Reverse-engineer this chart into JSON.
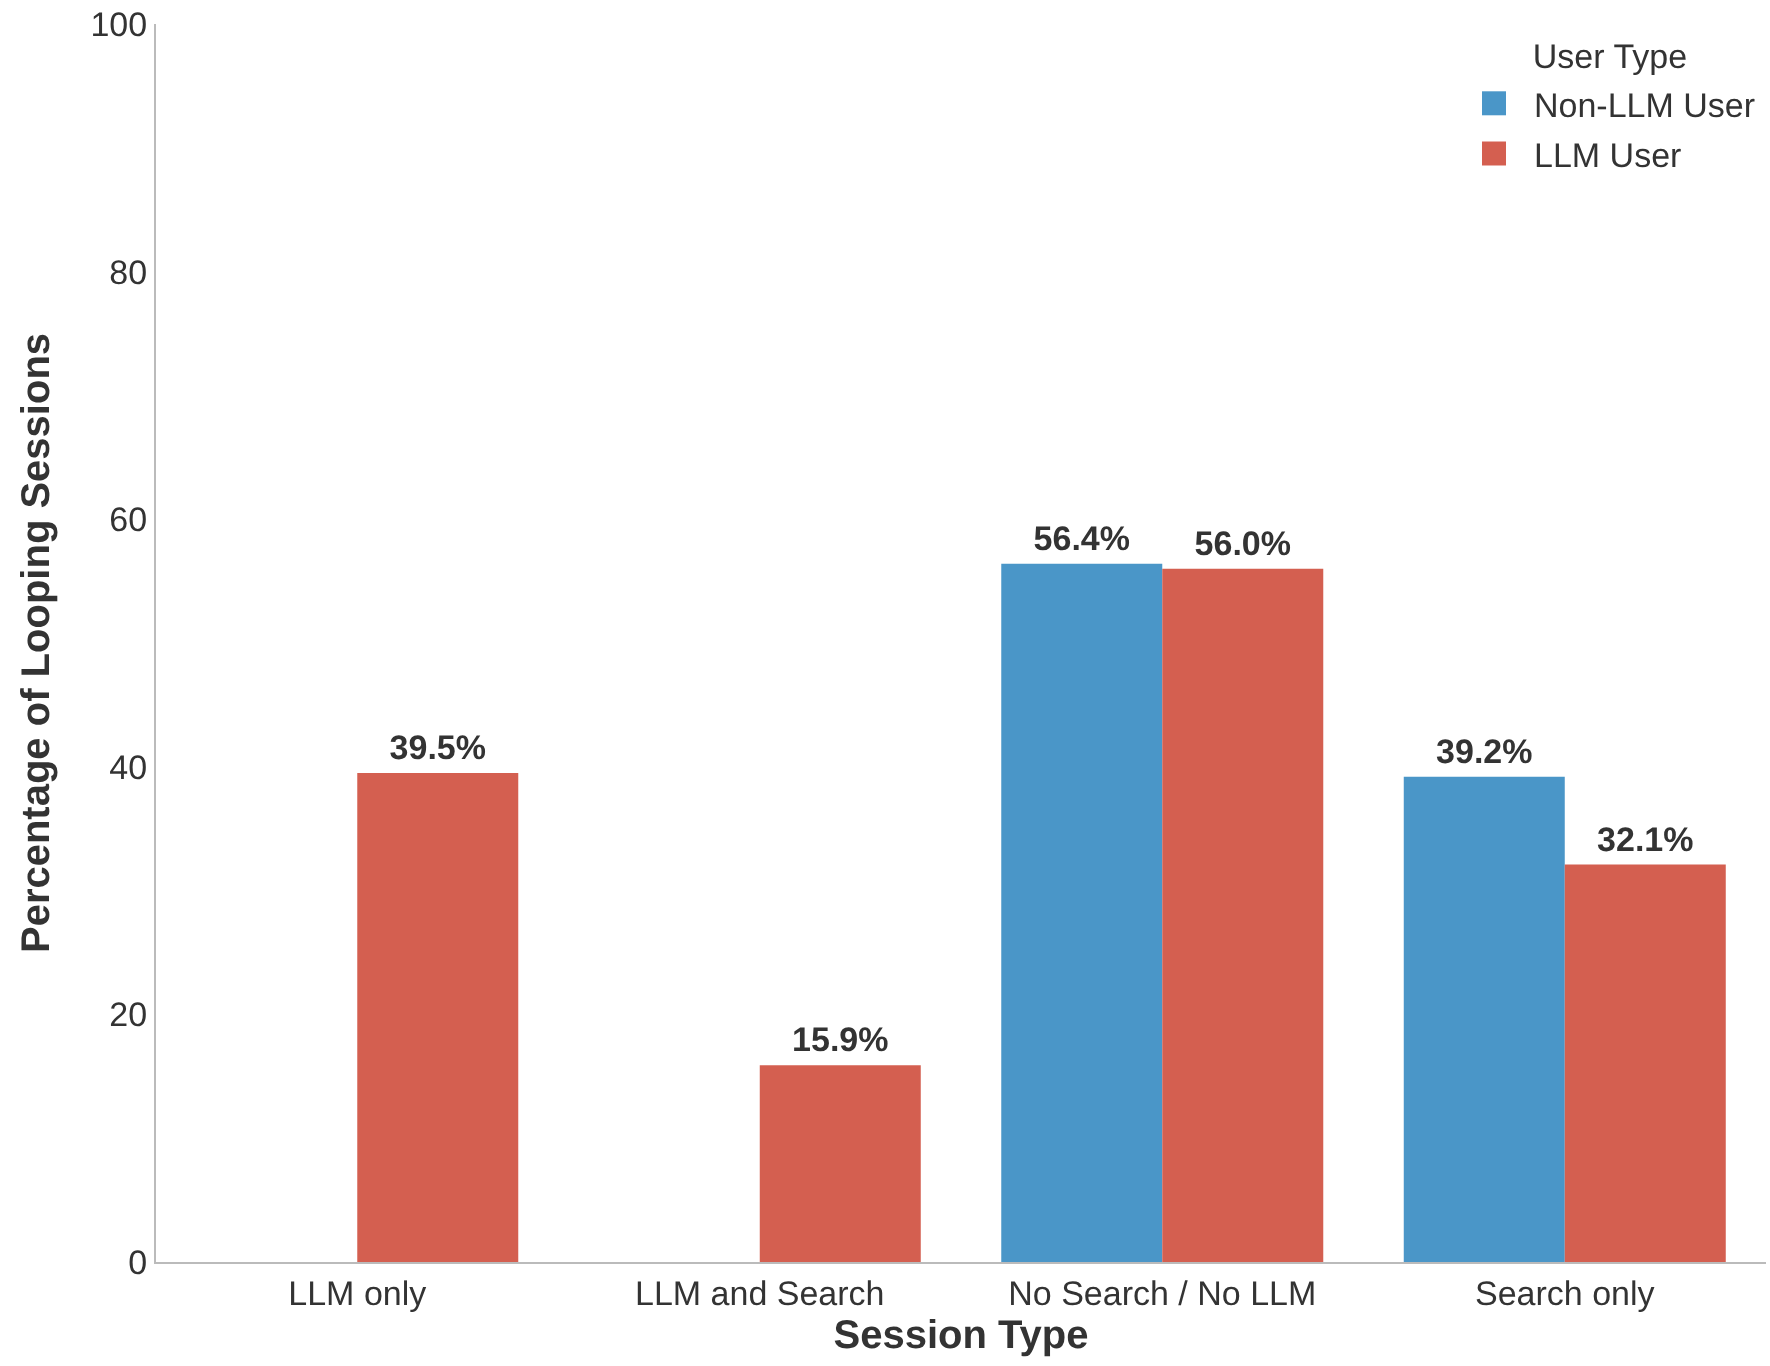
{
  "chart_data": {
    "type": "bar",
    "xlabel": "Session Type",
    "ylabel": "Percentage of Looping Sessions",
    "legend_title": "User Type",
    "categories": [
      "LLM only",
      "LLM and Search",
      "No Search / No LLM",
      "Search only"
    ],
    "series": [
      {
        "name": "Non-LLM User",
        "color": "#4a96c8",
        "values": [
          null,
          null,
          56.4,
          39.2
        ],
        "value_labels": [
          null,
          null,
          "56.4%",
          "39.2%"
        ]
      },
      {
        "name": "LLM User",
        "color": "#d45f50",
        "values": [
          39.5,
          15.9,
          56.0,
          32.1
        ],
        "value_labels": [
          "39.5%",
          "15.9%",
          "56.0%",
          "32.1%"
        ]
      }
    ],
    "ylim": [
      0,
      100
    ],
    "yticks": [
      0,
      20,
      40,
      60,
      80,
      100
    ],
    "legend": "top right"
  }
}
